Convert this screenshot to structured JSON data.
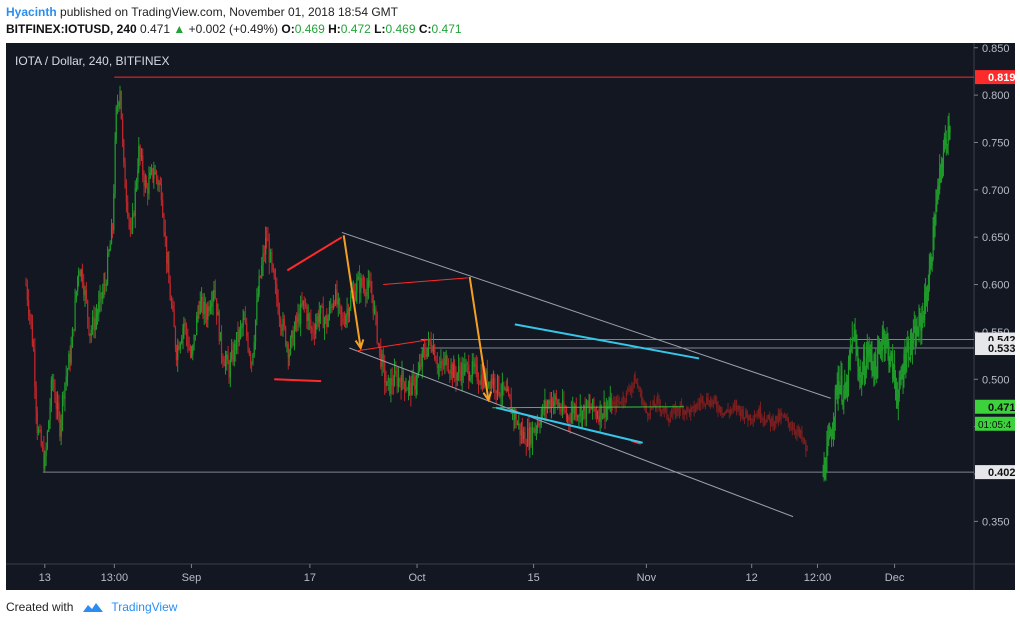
{
  "header": {
    "author": "Hyacinth",
    "published_text": "published on TradingView.com, November 01, 2018 18:54 GMT",
    "symbol": "BITFINEX:IOTUSD, 240",
    "last": "0.471",
    "change_arrow": "▲",
    "change": "+0.002 (+0.49%)",
    "o_label": "O:",
    "o_value": "0.469",
    "h_label": "H:",
    "h_value": "0.472",
    "l_label": "L:",
    "l_value": "0.469",
    "c_label": "C:",
    "c_value": "0.471"
  },
  "footer": {
    "created_with": "Created with",
    "brand": "TradingView"
  },
  "colors": {
    "background": "#131722",
    "up": "#1f9a2a",
    "down": "#c0262b",
    "projection": "#7d1f1f",
    "trend_red": "#ff2a2a",
    "arrow": "#f5a023",
    "cyan": "#35c6e8",
    "support_green": "#33c833",
    "grey": "#9aa0ad"
  },
  "chart_data": {
    "type": "candlestick",
    "title": "IOTA / Dollar, 240, BITFINEX",
    "ylim": [
      0.305,
      0.855
    ],
    "y_ticks": [
      0.35,
      0.4,
      0.45,
      0.5,
      0.55,
      0.6,
      0.65,
      0.7,
      0.75,
      0.8,
      0.85
    ],
    "y_tick_labels": [
      "0.350",
      "0.400",
      "0.450",
      "0.500",
      "0.550",
      "0.600",
      "0.650",
      "0.700",
      "0.750",
      "0.800",
      "0.850"
    ],
    "x_tick_labels": [
      "13",
      "13:00",
      "Sep",
      "17",
      "Oct",
      "15",
      "Nov",
      "12",
      "12:00",
      "Dec"
    ],
    "price_labels": [
      {
        "value": 0.819,
        "text": "0.819",
        "kind": "red"
      },
      {
        "value": 0.542,
        "text": "0.542",
        "kind": "grey"
      },
      {
        "value": 0.533,
        "text": "0.533",
        "kind": "grey"
      },
      {
        "value": 0.471,
        "text": "0.471",
        "kind": "green"
      },
      {
        "value": 0.402,
        "text": "0.402",
        "kind": "grey"
      }
    ],
    "countdown": "01:05:4",
    "horizontal_levels": [
      0.819,
      0.542,
      0.533,
      0.402
    ],
    "series": [
      {
        "name": "",
        "kind": "price",
        "x": [
          0,
          2,
          4,
          6,
          10,
          14,
          18,
          20,
          24,
          28,
          30,
          34,
          38,
          42,
          46,
          48,
          50,
          52,
          56,
          60,
          64,
          68,
          72,
          76,
          80,
          84,
          88,
          92,
          96,
          100,
          104,
          108,
          112,
          116,
          120,
          124,
          128,
          132,
          136,
          140,
          144,
          148,
          152,
          156,
          160,
          164,
          168,
          172,
          176,
          180,
          184,
          188,
          192,
          196,
          200,
          204,
          208,
          212,
          216,
          220,
          224,
          228,
          232,
          236,
          240,
          244,
          248,
          252,
          256,
          260,
          264,
          268,
          272,
          276,
          280,
          284,
          288,
          292,
          296,
          300,
          304,
          308,
          312
        ],
        "y": [
          0.6,
          0.57,
          0.53,
          0.45,
          0.41,
          0.5,
          0.45,
          0.49,
          0.53,
          0.62,
          0.61,
          0.55,
          0.57,
          0.6,
          0.66,
          0.78,
          0.81,
          0.72,
          0.65,
          0.74,
          0.7,
          0.72,
          0.7,
          0.6,
          0.53,
          0.56,
          0.52,
          0.58,
          0.57,
          0.6,
          0.53,
          0.51,
          0.54,
          0.56,
          0.52,
          0.6,
          0.65,
          0.6,
          0.56,
          0.53,
          0.56,
          0.58,
          0.55,
          0.57,
          0.56,
          0.59,
          0.56,
          0.58,
          0.6,
          0.6,
          0.59,
          0.53,
          0.49,
          0.5,
          0.5,
          0.49,
          0.5,
          0.53,
          0.54,
          0.51,
          0.52,
          0.505,
          0.51,
          0.51,
          0.505,
          0.5,
          0.5,
          0.49,
          0.48,
          0.46,
          0.44,
          0.44,
          0.455,
          0.47,
          0.48,
          0.47,
          0.46,
          0.47,
          0.465,
          0.47,
          0.465,
          0.47,
          0.471
        ]
      },
      {
        "name": "",
        "kind": "projection_down",
        "x": [
          312,
          318,
          324,
          330,
          336,
          342,
          348,
          354,
          360,
          366,
          372,
          378,
          384,
          390,
          396,
          402,
          408,
          412,
          416
        ],
        "y": [
          0.471,
          0.48,
          0.5,
          0.465,
          0.475,
          0.46,
          0.47,
          0.465,
          0.48,
          0.475,
          0.465,
          0.47,
          0.46,
          0.465,
          0.455,
          0.46,
          0.45,
          0.44,
          0.42
        ]
      },
      {
        "name": "",
        "kind": "projection_up",
        "x": [
          424,
          428,
          432,
          436,
          440,
          444,
          448,
          452,
          456,
          460,
          464,
          468,
          472,
          476,
          480,
          484,
          488,
          492
        ],
        "y": [
          0.4,
          0.44,
          0.5,
          0.48,
          0.55,
          0.5,
          0.53,
          0.51,
          0.55,
          0.52,
          0.48,
          0.53,
          0.54,
          0.56,
          0.6,
          0.68,
          0.74,
          0.78
        ]
      }
    ],
    "x_domain": [
      0,
      500
    ],
    "x_tick_positions": [
      10,
      47,
      88,
      151,
      208,
      270,
      330,
      386,
      421,
      462
    ]
  }
}
